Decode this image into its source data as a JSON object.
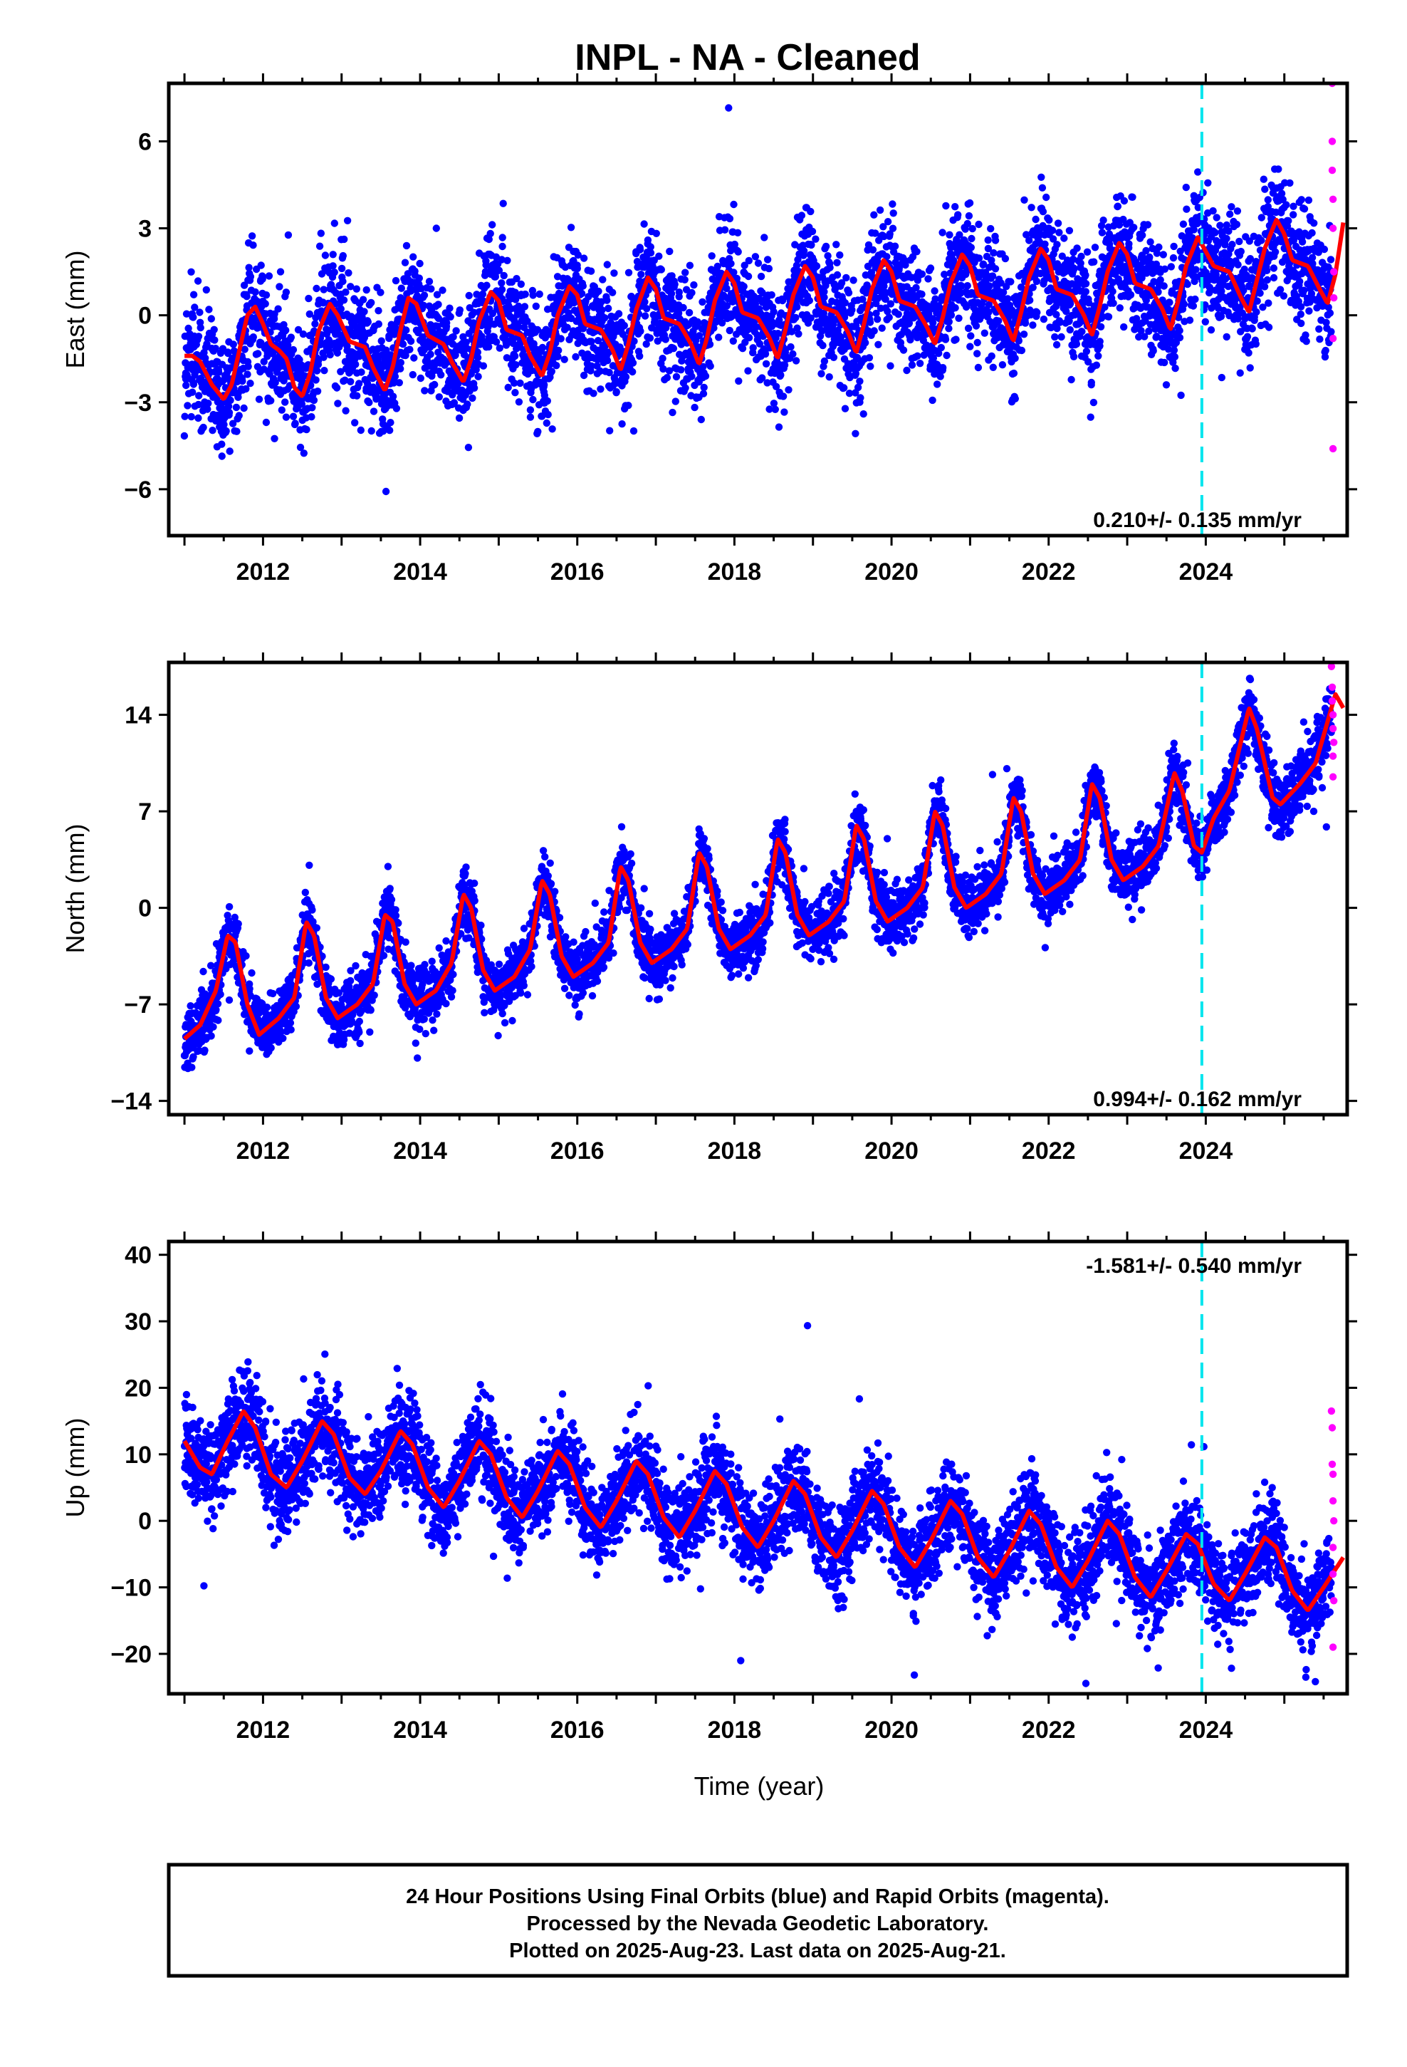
{
  "title": "INPL  - NA - Cleaned",
  "xlabel": "Time (year)",
  "footer": {
    "lines": [
      "24 Hour Positions Using Final Orbits (blue) and Rapid Orbits (magenta).",
      "Processed by the Nevada Geodetic Laboratory.",
      "Plotted on 2025-Aug-23. Last data on 2025-Aug-21."
    ]
  },
  "colors": {
    "final_orbits": "#0000ff",
    "rapid_orbits": "#ff00ff",
    "model": "#ff0000",
    "event_line": "#00e5ee"
  },
  "chart_data": [
    {
      "type": "scatter",
      "ylabel": "East (mm)",
      "rate_text": "0.210+/- 0.135 mm/yr",
      "xlim": [
        2010.8,
        2025.8
      ],
      "ylim": [
        -7.6,
        8.0
      ],
      "xticks": [
        "2012",
        "2014",
        "2016",
        "2018",
        "2020",
        "2022",
        "2024"
      ],
      "yticks": [
        "−6",
        "−3",
        "0",
        "3",
        "6"
      ],
      "ytick_values": [
        -6,
        -3,
        0,
        3,
        6
      ],
      "event_line_x": 2023.95,
      "model_knots": [
        [
          2011.0,
          -1.4
        ],
        [
          2011.1,
          -1.4
        ],
        [
          2011.2,
          -1.6
        ],
        [
          2011.35,
          -2.4
        ],
        [
          2011.5,
          -2.9
        ],
        [
          2011.6,
          -2.4
        ],
        [
          2011.7,
          -1.2
        ],
        [
          2011.8,
          0.0
        ],
        [
          2011.9,
          0.3
        ],
        [
          2012.0,
          -0.3
        ],
        [
          2012.1,
          -1.0
        ],
        [
          2012.2,
          -1.2
        ],
        [
          2012.3,
          -1.5
        ],
        [
          2012.4,
          -2.5
        ],
        [
          2012.5,
          -2.8
        ],
        [
          2012.6,
          -2.0
        ],
        [
          2012.7,
          -0.6
        ],
        [
          2012.85,
          0.4
        ],
        [
          2012.95,
          0.0
        ],
        [
          2013.1,
          -0.9
        ],
        [
          2013.3,
          -1.1
        ],
        [
          2013.4,
          -1.8
        ],
        [
          2013.55,
          -2.6
        ],
        [
          2013.65,
          -1.8
        ],
        [
          2013.75,
          -0.5
        ],
        [
          2013.85,
          0.6
        ],
        [
          2013.95,
          0.4
        ],
        [
          2014.1,
          -0.7
        ],
        [
          2014.3,
          -1.0
        ],
        [
          2014.4,
          -1.6
        ],
        [
          2014.55,
          -2.3
        ],
        [
          2014.65,
          -1.5
        ],
        [
          2014.75,
          -0.2
        ],
        [
          2014.9,
          0.8
        ],
        [
          2015.0,
          0.5
        ],
        [
          2015.1,
          -0.5
        ],
        [
          2015.3,
          -0.7
        ],
        [
          2015.4,
          -1.4
        ],
        [
          2015.55,
          -2.1
        ],
        [
          2015.65,
          -1.3
        ],
        [
          2015.75,
          0.0
        ],
        [
          2015.9,
          1.0
        ],
        [
          2016.0,
          0.7
        ],
        [
          2016.1,
          -0.3
        ],
        [
          2016.3,
          -0.5
        ],
        [
          2016.45,
          -1.2
        ],
        [
          2016.55,
          -1.9
        ],
        [
          2016.65,
          -1.0
        ],
        [
          2016.75,
          0.2
        ],
        [
          2016.9,
          1.3
        ],
        [
          2017.0,
          0.9
        ],
        [
          2017.1,
          -0.1
        ],
        [
          2017.3,
          -0.3
        ],
        [
          2017.45,
          -1.0
        ],
        [
          2017.55,
          -1.7
        ],
        [
          2017.65,
          -0.8
        ],
        [
          2017.75,
          0.5
        ],
        [
          2017.9,
          1.5
        ],
        [
          2018.0,
          1.1
        ],
        [
          2018.1,
          0.1
        ],
        [
          2018.3,
          -0.1
        ],
        [
          2018.45,
          -0.8
        ],
        [
          2018.55,
          -1.5
        ],
        [
          2018.65,
          -0.5
        ],
        [
          2018.75,
          0.7
        ],
        [
          2018.9,
          1.7
        ],
        [
          2019.0,
          1.3
        ],
        [
          2019.1,
          0.3
        ],
        [
          2019.3,
          0.1
        ],
        [
          2019.45,
          -0.6
        ],
        [
          2019.55,
          -1.3
        ],
        [
          2019.65,
          -0.3
        ],
        [
          2019.75,
          0.9
        ],
        [
          2019.9,
          1.9
        ],
        [
          2020.0,
          1.5
        ],
        [
          2020.1,
          0.5
        ],
        [
          2020.3,
          0.3
        ],
        [
          2020.45,
          -0.4
        ],
        [
          2020.55,
          -1.0
        ],
        [
          2020.65,
          -0.1
        ],
        [
          2020.75,
          1.1
        ],
        [
          2020.9,
          2.1
        ],
        [
          2021.0,
          1.7
        ],
        [
          2021.1,
          0.7
        ],
        [
          2021.3,
          0.5
        ],
        [
          2021.45,
          -0.2
        ],
        [
          2021.55,
          -0.9
        ],
        [
          2021.65,
          0.1
        ],
        [
          2021.75,
          1.3
        ],
        [
          2021.9,
          2.3
        ],
        [
          2022.0,
          1.9
        ],
        [
          2022.1,
          0.9
        ],
        [
          2022.3,
          0.7
        ],
        [
          2022.45,
          0.0
        ],
        [
          2022.55,
          -0.7
        ],
        [
          2022.65,
          0.3
        ],
        [
          2022.75,
          1.5
        ],
        [
          2022.9,
          2.5
        ],
        [
          2023.0,
          2.1
        ],
        [
          2023.1,
          1.1
        ],
        [
          2023.3,
          0.9
        ],
        [
          2023.45,
          0.2
        ],
        [
          2023.55,
          -0.5
        ],
        [
          2023.65,
          0.5
        ],
        [
          2023.75,
          1.7
        ],
        [
          2023.9,
          2.7
        ],
        [
          2024.0,
          2.2
        ],
        [
          2024.1,
          1.7
        ],
        [
          2024.3,
          1.5
        ],
        [
          2024.45,
          0.6
        ],
        [
          2024.55,
          0.1
        ],
        [
          2024.65,
          1.2
        ],
        [
          2024.75,
          2.3
        ],
        [
          2024.9,
          3.3
        ],
        [
          2025.0,
          2.8
        ],
        [
          2025.1,
          1.9
        ],
        [
          2025.3,
          1.7
        ],
        [
          2025.45,
          0.9
        ],
        [
          2025.55,
          0.4
        ],
        [
          2025.65,
          1.4
        ],
        [
          2025.75,
          3.2
        ]
      ],
      "seasonal_amplitude": 1.6,
      "noise_sd": 1.0,
      "rapid_points": [
        [
          2025.61,
          8.0
        ],
        [
          2025.61,
          6.0
        ],
        [
          2025.61,
          5.0
        ],
        [
          2025.62,
          4.0
        ],
        [
          2025.62,
          3.0
        ],
        [
          2025.63,
          1.5
        ],
        [
          2025.63,
          0.6
        ],
        [
          2025.62,
          -0.8
        ],
        [
          2025.62,
          -4.6
        ]
      ]
    },
    {
      "type": "scatter",
      "ylabel": "North (mm)",
      "rate_text": "0.994+/- 0.162 mm/yr",
      "xlim": [
        2010.8,
        2025.8
      ],
      "ylim": [
        -15.0,
        17.8
      ],
      "xticks": [
        "2012",
        "2014",
        "2016",
        "2018",
        "2020",
        "2022",
        "2024"
      ],
      "yticks": [
        "−14",
        "−7",
        "0",
        "7",
        "14"
      ],
      "ytick_values": [
        -14,
        -7,
        0,
        7,
        14
      ],
      "event_line_x": 2023.95,
      "model_knots": [
        [
          2011.0,
          -9.5
        ],
        [
          2011.2,
          -8.5
        ],
        [
          2011.4,
          -6.0
        ],
        [
          2011.55,
          -2.0
        ],
        [
          2011.65,
          -2.5
        ],
        [
          2011.8,
          -7.0
        ],
        [
          2011.95,
          -9.2
        ],
        [
          2012.2,
          -8.0
        ],
        [
          2012.4,
          -6.5
        ],
        [
          2012.55,
          -1.0
        ],
        [
          2012.65,
          -2.0
        ],
        [
          2012.8,
          -6.5
        ],
        [
          2012.95,
          -8.0
        ],
        [
          2013.2,
          -7.0
        ],
        [
          2013.4,
          -5.5
        ],
        [
          2013.55,
          -0.5
        ],
        [
          2013.65,
          -1.0
        ],
        [
          2013.8,
          -5.5
        ],
        [
          2013.95,
          -7.0
        ],
        [
          2014.2,
          -6.0
        ],
        [
          2014.4,
          -4.0
        ],
        [
          2014.55,
          1.0
        ],
        [
          2014.65,
          0.0
        ],
        [
          2014.8,
          -4.5
        ],
        [
          2014.95,
          -6.0
        ],
        [
          2015.2,
          -5.0
        ],
        [
          2015.4,
          -3.0
        ],
        [
          2015.55,
          2.0
        ],
        [
          2015.65,
          1.0
        ],
        [
          2015.8,
          -3.5
        ],
        [
          2015.95,
          -5.0
        ],
        [
          2016.2,
          -4.0
        ],
        [
          2016.4,
          -2.5
        ],
        [
          2016.55,
          3.0
        ],
        [
          2016.65,
          2.0
        ],
        [
          2016.8,
          -2.5
        ],
        [
          2016.95,
          -4.0
        ],
        [
          2017.2,
          -3.0
        ],
        [
          2017.4,
          -1.5
        ],
        [
          2017.55,
          4.0
        ],
        [
          2017.65,
          3.0
        ],
        [
          2017.8,
          -1.5
        ],
        [
          2017.95,
          -3.0
        ],
        [
          2018.2,
          -2.0
        ],
        [
          2018.4,
          -0.5
        ],
        [
          2018.55,
          5.0
        ],
        [
          2018.65,
          4.0
        ],
        [
          2018.8,
          -0.5
        ],
        [
          2018.95,
          -2.0
        ],
        [
          2019.2,
          -1.0
        ],
        [
          2019.4,
          0.5
        ],
        [
          2019.55,
          6.0
        ],
        [
          2019.65,
          5.0
        ],
        [
          2019.8,
          0.5
        ],
        [
          2019.95,
          -1.0
        ],
        [
          2020.2,
          0.0
        ],
        [
          2020.4,
          1.5
        ],
        [
          2020.55,
          7.0
        ],
        [
          2020.65,
          6.0
        ],
        [
          2020.8,
          1.5
        ],
        [
          2020.95,
          0.0
        ],
        [
          2021.2,
          1.0
        ],
        [
          2021.4,
          2.5
        ],
        [
          2021.55,
          8.0
        ],
        [
          2021.65,
          7.0
        ],
        [
          2021.8,
          2.5
        ],
        [
          2021.95,
          1.0
        ],
        [
          2022.2,
          2.0
        ],
        [
          2022.4,
          3.5
        ],
        [
          2022.55,
          9.0
        ],
        [
          2022.65,
          8.0
        ],
        [
          2022.8,
          3.5
        ],
        [
          2022.95,
          2.0
        ],
        [
          2023.2,
          3.0
        ],
        [
          2023.4,
          4.5
        ],
        [
          2023.6,
          9.8
        ],
        [
          2023.7,
          8.5
        ],
        [
          2023.85,
          4.5
        ],
        [
          2023.95,
          4.0
        ],
        [
          2024.1,
          6.5
        ],
        [
          2024.3,
          8.5
        ],
        [
          2024.55,
          14.5
        ],
        [
          2024.65,
          13.0
        ],
        [
          2024.85,
          8.0
        ],
        [
          2024.95,
          7.5
        ],
        [
          2025.2,
          9.0
        ],
        [
          2025.4,
          10.5
        ],
        [
          2025.65,
          15.5
        ],
        [
          2025.75,
          14.5
        ]
      ],
      "seasonal_amplitude": 4.0,
      "noise_sd": 1.1,
      "rapid_points": [
        [
          2025.6,
          17.5
        ],
        [
          2025.61,
          16.0
        ],
        [
          2025.61,
          15.0
        ],
        [
          2025.62,
          14.0
        ],
        [
          2025.62,
          13.0
        ],
        [
          2025.63,
          12.0
        ],
        [
          2025.62,
          11.0
        ],
        [
          2025.62,
          9.5
        ]
      ]
    },
    {
      "type": "scatter",
      "ylabel": "Up (mm)",
      "rate_text": "-1.581+/- 0.540 mm/yr",
      "xlim": [
        2010.8,
        2025.8
      ],
      "ylim": [
        -26.0,
        42.0
      ],
      "xticks": [
        "2012",
        "2014",
        "2016",
        "2018",
        "2020",
        "2022",
        "2024"
      ],
      "yticks": [
        "−20",
        "−10",
        "0",
        "10",
        "20",
        "30",
        "40"
      ],
      "ytick_values": [
        -20,
        -10,
        0,
        10,
        20,
        30,
        40
      ],
      "event_line_x": 2023.95,
      "model_knots": [
        [
          2011.0,
          12.0
        ],
        [
          2011.2,
          8.0
        ],
        [
          2011.35,
          7.0
        ],
        [
          2011.55,
          12.0
        ],
        [
          2011.75,
          16.5
        ],
        [
          2011.9,
          14.0
        ],
        [
          2012.1,
          7.0
        ],
        [
          2012.3,
          5.0
        ],
        [
          2012.5,
          9.0
        ],
        [
          2012.75,
          15.0
        ],
        [
          2012.9,
          13.0
        ],
        [
          2013.1,
          6.5
        ],
        [
          2013.3,
          4.0
        ],
        [
          2013.5,
          7.5
        ],
        [
          2013.75,
          13.5
        ],
        [
          2013.9,
          11.5
        ],
        [
          2014.1,
          5.0
        ],
        [
          2014.3,
          2.0
        ],
        [
          2014.5,
          6.0
        ],
        [
          2014.75,
          12.0
        ],
        [
          2014.9,
          10.0
        ],
        [
          2015.1,
          3.5
        ],
        [
          2015.3,
          0.5
        ],
        [
          2015.5,
          4.5
        ],
        [
          2015.75,
          10.5
        ],
        [
          2015.9,
          8.5
        ],
        [
          2016.1,
          2.0
        ],
        [
          2016.3,
          -1.0
        ],
        [
          2016.5,
          3.0
        ],
        [
          2016.75,
          9.0
        ],
        [
          2016.9,
          7.0
        ],
        [
          2017.1,
          0.5
        ],
        [
          2017.3,
          -2.5
        ],
        [
          2017.5,
          1.5
        ],
        [
          2017.75,
          7.5
        ],
        [
          2017.9,
          5.5
        ],
        [
          2018.1,
          -1.0
        ],
        [
          2018.3,
          -4.0
        ],
        [
          2018.5,
          0.0
        ],
        [
          2018.75,
          6.0
        ],
        [
          2018.9,
          4.0
        ],
        [
          2019.1,
          -2.5
        ],
        [
          2019.3,
          -5.5
        ],
        [
          2019.5,
          -1.5
        ],
        [
          2019.75,
          4.5
        ],
        [
          2019.9,
          2.5
        ],
        [
          2020.1,
          -4.0
        ],
        [
          2020.3,
          -7.0
        ],
        [
          2020.5,
          -3.0
        ],
        [
          2020.75,
          3.0
        ],
        [
          2020.9,
          1.0
        ],
        [
          2021.1,
          -5.5
        ],
        [
          2021.3,
          -8.5
        ],
        [
          2021.5,
          -4.5
        ],
        [
          2021.75,
          1.5
        ],
        [
          2021.9,
          -0.5
        ],
        [
          2022.1,
          -7.0
        ],
        [
          2022.3,
          -10.0
        ],
        [
          2022.5,
          -6.0
        ],
        [
          2022.75,
          0.0
        ],
        [
          2022.9,
          -2.0
        ],
        [
          2023.1,
          -8.5
        ],
        [
          2023.3,
          -11.5
        ],
        [
          2023.5,
          -7.5
        ],
        [
          2023.75,
          -2.0
        ],
        [
          2023.9,
          -3.5
        ],
        [
          2024.1,
          -9.5
        ],
        [
          2024.3,
          -12.0
        ],
        [
          2024.5,
          -8.0
        ],
        [
          2024.75,
          -2.5
        ],
        [
          2024.9,
          -4.0
        ],
        [
          2025.1,
          -10.5
        ],
        [
          2025.3,
          -13.5
        ],
        [
          2025.5,
          -10.0
        ],
        [
          2025.75,
          -5.5
        ]
      ],
      "seasonal_amplitude": 5.0,
      "noise_sd": 3.5,
      "rapid_points": [
        [
          2025.6,
          16.5
        ],
        [
          2025.61,
          14.0
        ],
        [
          2025.61,
          8.5
        ],
        [
          2025.62,
          7.0
        ],
        [
          2025.62,
          3.0
        ],
        [
          2025.63,
          0.0
        ],
        [
          2025.62,
          -4.0
        ],
        [
          2025.62,
          -8.0
        ],
        [
          2025.63,
          -12.0
        ],
        [
          2025.62,
          -19.0
        ]
      ]
    }
  ]
}
